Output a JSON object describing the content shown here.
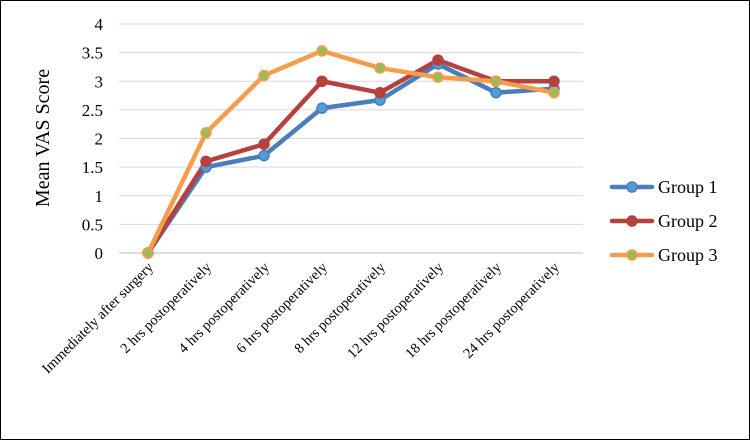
{
  "chart_data": {
    "type": "line",
    "title": "",
    "ylabel": "Mean VAS Score",
    "xlabel": "",
    "ylim": [
      0,
      4
    ],
    "yticks": [
      0,
      0.5,
      1,
      1.5,
      2,
      2.5,
      3,
      3.5,
      4
    ],
    "ytick_labels": [
      "0",
      "0.5",
      "1",
      "1.5",
      "2",
      "2.5",
      "3",
      "3.5",
      "4"
    ],
    "grid": true,
    "legend_position": "right",
    "categories": [
      "Immediately after surgery",
      "2 hrs postoperatively",
      "4 hrs postoperatively",
      "6 hrs postoperatively",
      "8 hrs postoperatively",
      "12 hrs postoperatively",
      "18 hrs postoperatively",
      "24 hrs postoperatively"
    ],
    "series": [
      {
        "name": "Group 1",
        "color": "#4a7ebb",
        "marker_fill": "#4f9fd6",
        "values": [
          0,
          1.5,
          1.7,
          2.53,
          2.67,
          3.3,
          2.8,
          2.87
        ]
      },
      {
        "name": "Group 2",
        "color": "#b5413f",
        "marker_fill": "#b5413f",
        "values": [
          0,
          1.6,
          1.9,
          3.0,
          2.8,
          3.37,
          3.0,
          3.0
        ]
      },
      {
        "name": "Group 3",
        "color": "#f59d4a",
        "marker_fill": "#9bbb59",
        "values": [
          0,
          2.1,
          3.1,
          3.53,
          3.23,
          3.07,
          3.0,
          2.8
        ]
      }
    ]
  }
}
